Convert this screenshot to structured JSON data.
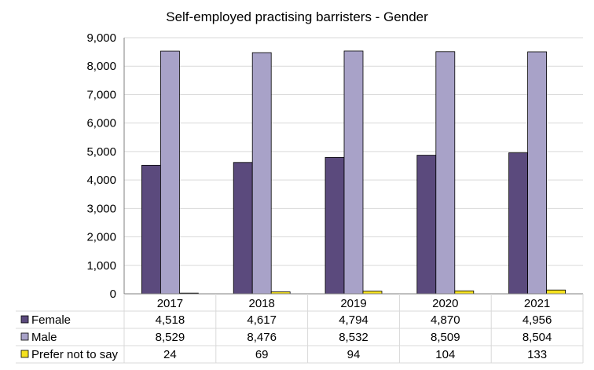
{
  "chart_data": {
    "type": "bar",
    "title": "Self-employed practising barristers - Gender",
    "categories": [
      "2017",
      "2018",
      "2019",
      "2020",
      "2021"
    ],
    "series": [
      {
        "name": "Female",
        "values": [
          4518,
          4617,
          4794,
          4870,
          4956
        ],
        "labels": [
          "4,518",
          "4,617",
          "4,794",
          "4,870",
          "4,956"
        ],
        "color": "#5b4a7d"
      },
      {
        "name": "Male",
        "values": [
          8529,
          8476,
          8532,
          8509,
          8504
        ],
        "labels": [
          "8,529",
          "8,476",
          "8,532",
          "8,509",
          "8,504"
        ],
        "color": "#a8a2c8"
      },
      {
        "name": "Prefer not to say",
        "values": [
          24,
          69,
          94,
          104,
          133
        ],
        "labels": [
          "24",
          "69",
          "94",
          "104",
          "133"
        ],
        "color": "#f5e11f"
      }
    ],
    "ylim": [
      0,
      9000
    ],
    "yticks": [
      "0",
      "1,000",
      "2,000",
      "3,000",
      "4,000",
      "5,000",
      "6,000",
      "7,000",
      "8,000",
      "9,000"
    ],
    "grid": true,
    "legend": "data-table"
  }
}
